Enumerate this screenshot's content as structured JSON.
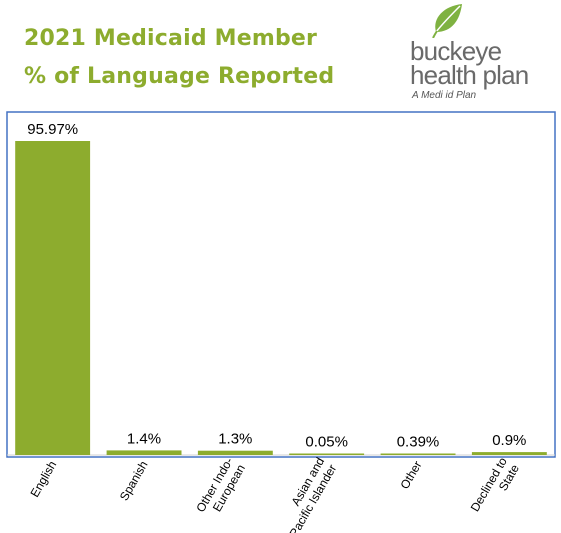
{
  "header": {
    "title_line1": "2021 Medicaid Member",
    "title_line2": "% of Language Reported"
  },
  "logo": {
    "word1": "buckeye",
    "word2": "health plan",
    "tagline": "A Medi   id Plan",
    "leaf_color": "#7fb241"
  },
  "colors": {
    "title": "#8dac2e",
    "bar": "#8dac2e",
    "frame": "#4472c4"
  },
  "chart_data": {
    "type": "bar",
    "categories": [
      "English",
      "Spanish",
      "Other Indo-European",
      "Asian and Pacific Islander",
      "Other",
      "Declined to State"
    ],
    "category_lines": [
      [
        "English"
      ],
      [
        "Spanish"
      ],
      [
        "Other Indo-",
        "European"
      ],
      [
        "Asian and",
        "Pacific Islander"
      ],
      [
        "Other"
      ],
      [
        "Declined to",
        "State"
      ]
    ],
    "values": [
      95.97,
      1.4,
      1.3,
      0.05,
      0.39,
      0.9
    ],
    "data_labels": [
      "95.97%",
      "1.4%",
      "1.3%",
      "0.05%",
      "0.39%",
      "0.9%"
    ],
    "ylim": [
      0,
      100
    ],
    "grid": false,
    "legend": "none"
  }
}
